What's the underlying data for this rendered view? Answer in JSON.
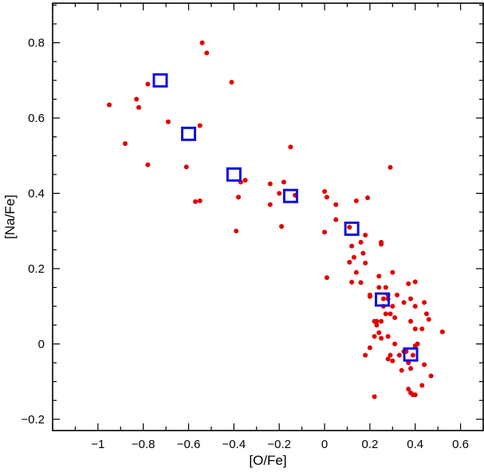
{
  "chart_data": {
    "type": "scatter",
    "xlabel": "[O/Fe]",
    "ylabel": "[Na/Fe]",
    "xlim": [
      -1.2,
      0.7
    ],
    "ylim": [
      -0.23,
      0.905
    ],
    "xticks": [
      -1,
      -0.8,
      -0.6,
      -0.4,
      -0.2,
      0,
      0.2,
      0.4,
      0.6
    ],
    "xtick_labels": [
      "−1",
      "−0.8",
      "−0.6",
      "−0.4",
      "−0.2",
      "0",
      "0.2",
      "0.4",
      "0.6"
    ],
    "yticks": [
      -0.2,
      0,
      0.2,
      0.4,
      0.6,
      0.8
    ],
    "ytick_labels": [
      "−0.2",
      "0",
      "0.2",
      "0.4",
      "0.6",
      "0.8"
    ],
    "grid": false,
    "series": [
      {
        "marker": "dot",
        "color": "#e00000",
        "points": [
          [
            -0.95,
            0.635
          ],
          [
            -0.88,
            0.532
          ],
          [
            -0.83,
            0.65
          ],
          [
            -0.82,
            0.628
          ],
          [
            -0.78,
            0.476
          ],
          [
            -0.78,
            0.69
          ],
          [
            -0.69,
            0.59
          ],
          [
            -0.61,
            0.47
          ],
          [
            -0.57,
            0.378
          ],
          [
            -0.55,
            0.38
          ],
          [
            -0.54,
            0.8
          ],
          [
            -0.52,
            0.773
          ],
          [
            -0.55,
            0.58
          ],
          [
            -0.41,
            0.695
          ],
          [
            -0.39,
            0.3
          ],
          [
            -0.38,
            0.39
          ],
          [
            -0.37,
            0.43
          ],
          [
            -0.35,
            0.435
          ],
          [
            -0.24,
            0.425
          ],
          [
            -0.24,
            0.37
          ],
          [
            -0.19,
            0.312
          ],
          [
            -0.2,
            0.4
          ],
          [
            -0.18,
            0.43
          ],
          [
            -0.15,
            0.523
          ],
          [
            -0.13,
            0.395
          ],
          [
            0,
            0.405
          ],
          [
            0.01,
            0.39
          ],
          [
            0,
            0.297
          ],
          [
            0.01,
            0.176
          ],
          [
            0.05,
            0.33
          ],
          [
            0.05,
            0.37
          ],
          [
            0.11,
            0.31
          ],
          [
            0.14,
            0.38
          ],
          [
            0.12,
            0.26
          ],
          [
            0.13,
            0.23
          ],
          [
            0.14,
            0.19
          ],
          [
            0.16,
            0.27
          ],
          [
            0.17,
            0.241
          ],
          [
            0.18,
            0.289
          ],
          [
            0.18,
            0.215
          ],
          [
            0.19,
            0.388
          ],
          [
            0.29,
            0.469
          ],
          [
            0.11,
            0.217
          ],
          [
            0.12,
            0.164
          ],
          [
            0.16,
            0.163
          ],
          [
            0.2,
            0.13
          ],
          [
            0.2,
            0.126
          ],
          [
            0.24,
            0.15
          ],
          [
            0.24,
            0.18
          ],
          [
            0.25,
            0.27
          ],
          [
            0.25,
            0.265
          ],
          [
            0.27,
            0.15
          ],
          [
            0.28,
            0.12
          ],
          [
            0.29,
            0.08
          ],
          [
            0.3,
            0.19
          ],
          [
            0.31,
            0.07
          ],
          [
            0.32,
            0.13
          ],
          [
            0.35,
            0.11
          ],
          [
            0.37,
            0.16
          ],
          [
            0.38,
            0.06
          ],
          [
            0.4,
            0.1
          ],
          [
            0.4,
            0.165
          ],
          [
            0.4,
            0.04
          ],
          [
            0.22,
            0.06
          ],
          [
            0.22,
            0.02
          ],
          [
            0.23,
            0.05
          ],
          [
            0.23,
            0.06
          ],
          [
            0.24,
            0.03
          ],
          [
            0.25,
            0.06
          ],
          [
            0.26,
            0.1
          ],
          [
            0.27,
            0.08
          ],
          [
            0.28,
            0.02
          ],
          [
            0.28,
            -0.04
          ],
          [
            0.29,
            -0.03
          ],
          [
            0.3,
            -0.045
          ],
          [
            0.31,
            0
          ],
          [
            0.33,
            -0.03
          ],
          [
            0.34,
            -0.07
          ],
          [
            0.35,
            -0.02
          ],
          [
            0.36,
            -0.02
          ],
          [
            0.37,
            -0.05
          ],
          [
            0.38,
            -0.065
          ],
          [
            0.39,
            -0.03
          ],
          [
            0.4,
            -0.005
          ],
          [
            0.41,
            0
          ],
          [
            0.43,
            0.04
          ],
          [
            0.44,
            0.11
          ],
          [
            0.45,
            0.08
          ],
          [
            0.46,
            0.065
          ],
          [
            0.47,
            -0.085
          ],
          [
            0.52,
            0.032
          ],
          [
            0.43,
            -0.11
          ],
          [
            0.44,
            -0.055
          ],
          [
            0.38,
            -0.13
          ],
          [
            0.37,
            -0.12
          ],
          [
            0.39,
            -0.135
          ],
          [
            0.4,
            -0.135
          ],
          [
            0.22,
            -0.14
          ],
          [
            0.18,
            -0.03
          ],
          [
            0.2,
            -0.01
          ],
          [
            0.25,
            0.015
          ],
          [
            0.26,
            0.12
          ],
          [
            0.28,
            0.13
          ],
          [
            0.3,
            0.1
          ],
          [
            0.38,
            0.12
          ]
        ]
      },
      {
        "marker": "open-square",
        "color": "#1010e0",
        "points": [
          [
            -0.725,
            0.7
          ],
          [
            -0.6,
            0.558
          ],
          [
            -0.4,
            0.45
          ],
          [
            -0.15,
            0.393
          ],
          [
            0.12,
            0.306
          ],
          [
            0.255,
            0.118
          ],
          [
            0.38,
            -0.028
          ]
        ]
      }
    ]
  }
}
